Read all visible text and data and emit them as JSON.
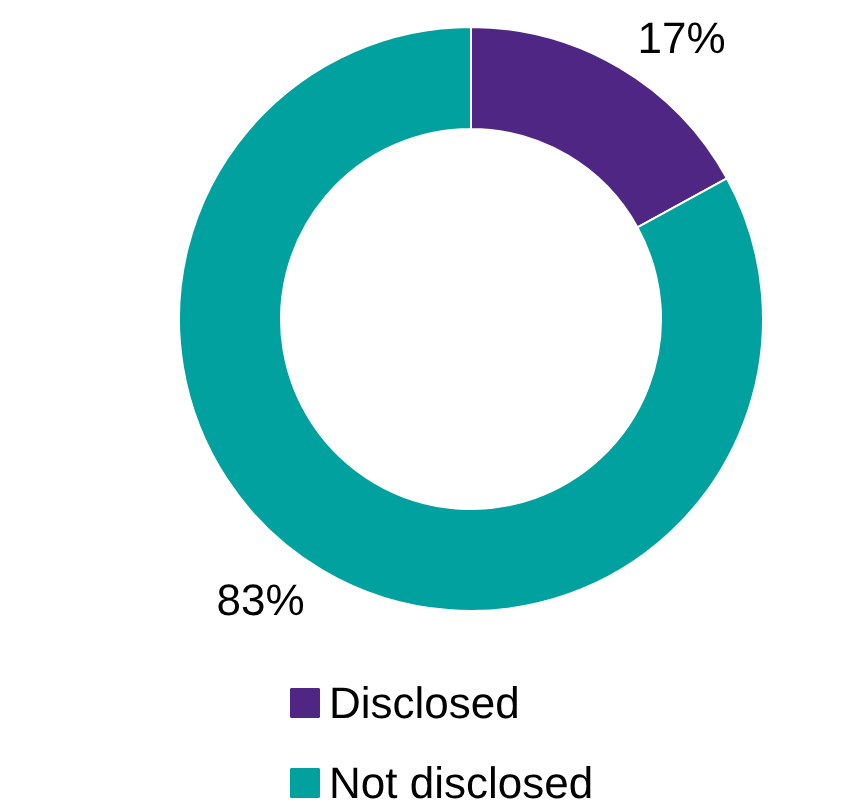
{
  "chart_data": {
    "type": "donut",
    "categories": [
      "Disclosed",
      "Not disclosed"
    ],
    "values": [
      17,
      83
    ],
    "colors": [
      "#4f2683",
      "#00a19e"
    ],
    "value_labels": [
      "17%",
      "83%"
    ],
    "legend": "bottom"
  }
}
